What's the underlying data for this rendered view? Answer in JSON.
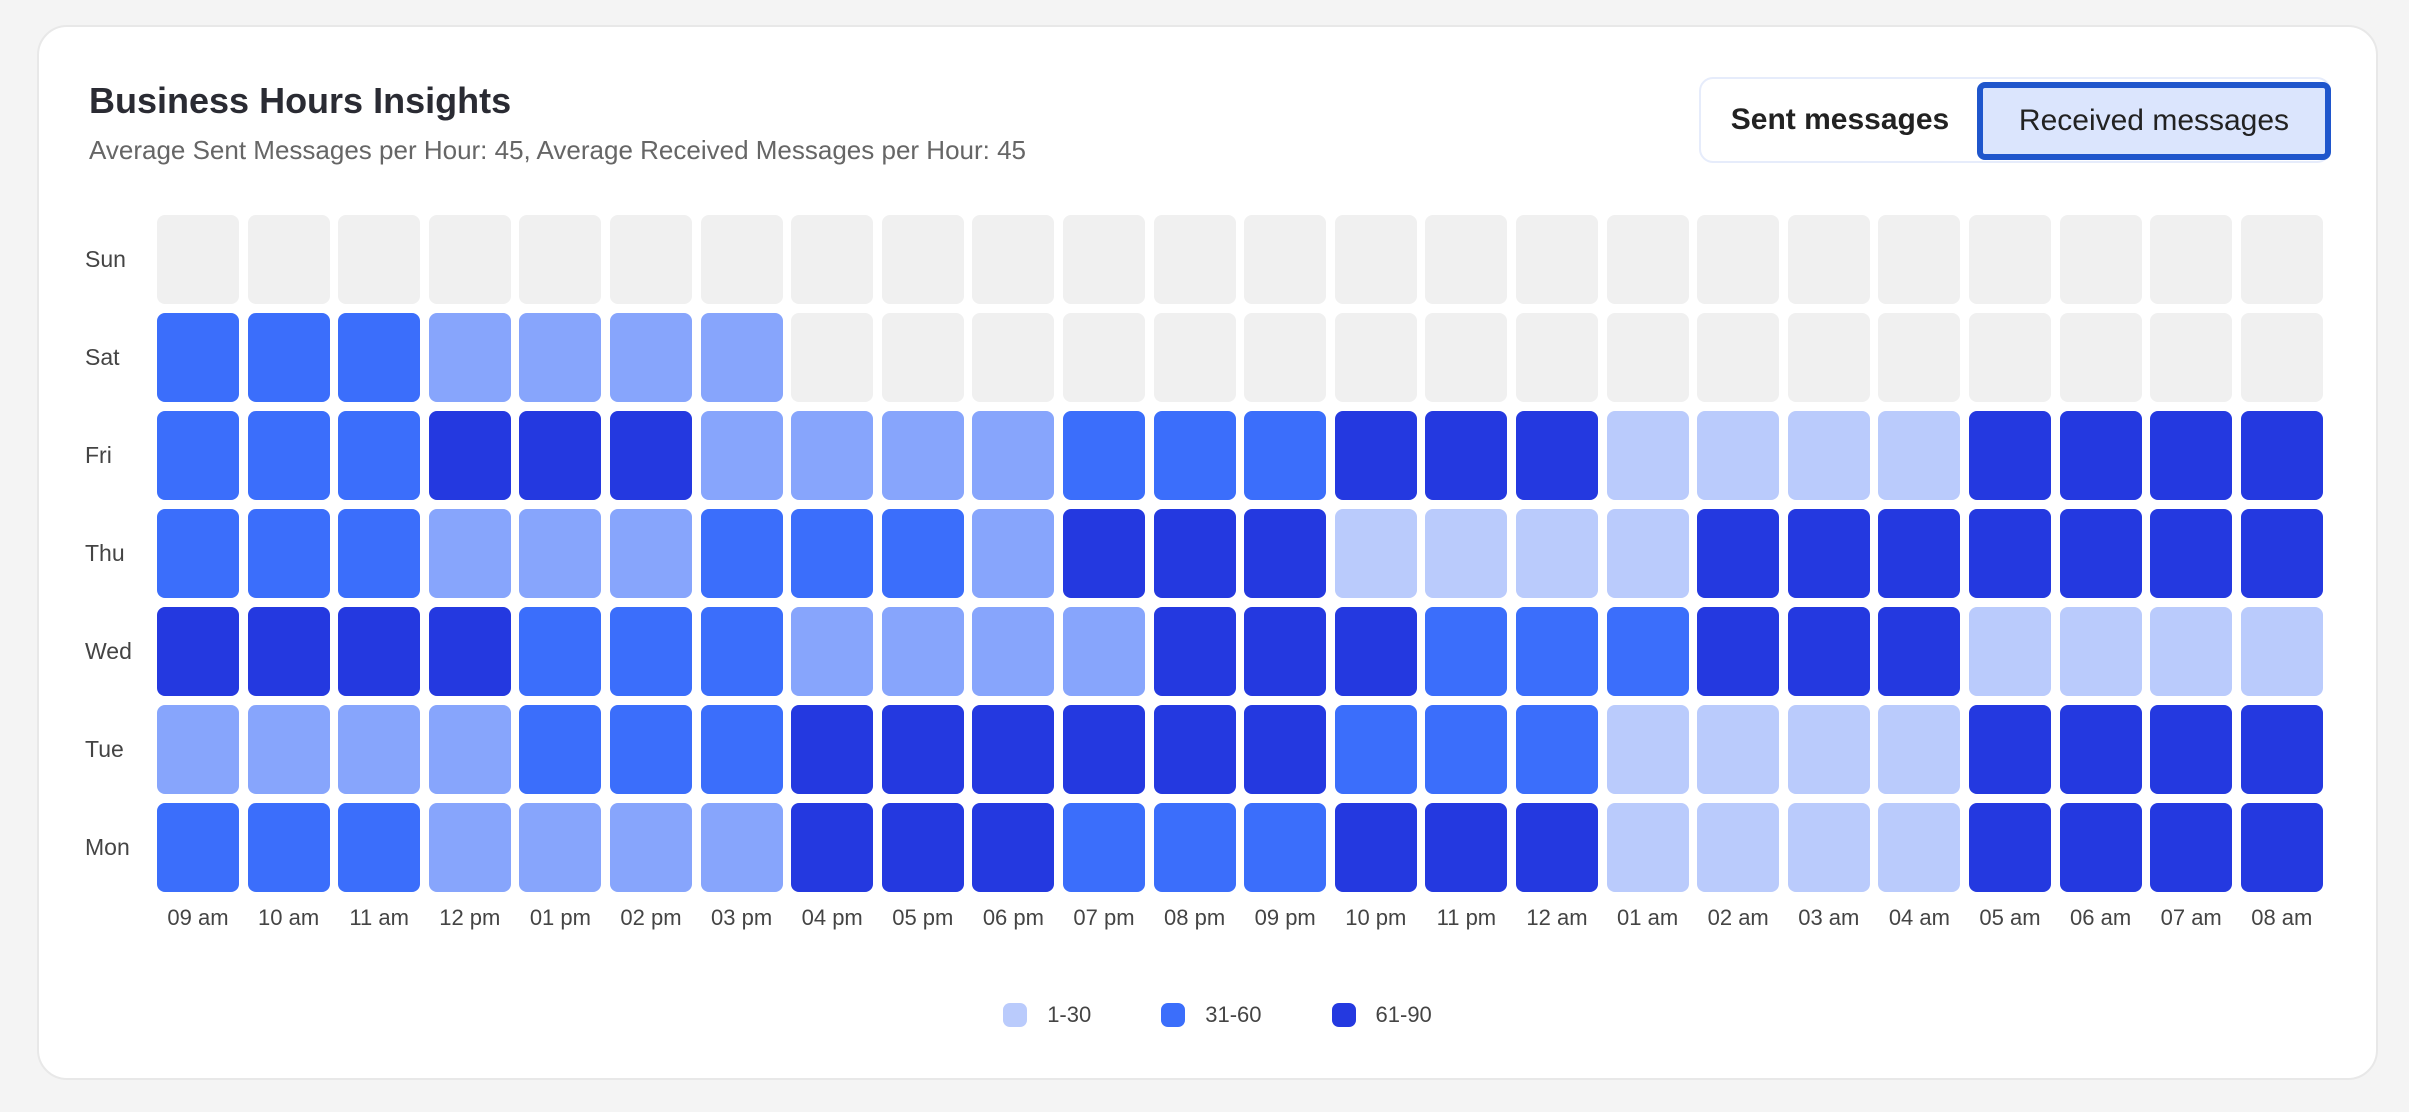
{
  "header": {
    "title": "Business Hours Insights",
    "subtitle": "Average Sent Messages per Hour: 45, Average Received Messages per Hour: 45"
  },
  "toggle": {
    "sent_label": "Sent messages",
    "received_label": "Received messages",
    "selected": "Received messages"
  },
  "chart_data": {
    "type": "heatmap",
    "rows": [
      "Sun",
      "Sat",
      "Fri",
      "Thu",
      "Wed",
      "Tue",
      "Mon"
    ],
    "columns": [
      "09 am",
      "10 am",
      "11 am",
      "12 pm",
      "01 pm",
      "02 pm",
      "03 pm",
      "04 pm",
      "05 pm",
      "06 pm",
      "07 pm",
      "08 pm",
      "09 pm",
      "10 pm",
      "11 pm",
      "12 am",
      "01 am",
      "02 am",
      "03 am",
      "04 am",
      "05 am",
      "06 am",
      "07 am",
      "08 am"
    ],
    "level_colors": [
      "#f0f0f0",
      "#bacbfc",
      "#87a5fc",
      "#3b6efb",
      "#2439e0"
    ],
    "levels": [
      [
        0,
        0,
        0,
        0,
        0,
        0,
        0,
        0,
        0,
        0,
        0,
        0,
        0,
        0,
        0,
        0,
        0,
        0,
        0,
        0,
        0,
        0,
        0,
        0
      ],
      [
        3,
        3,
        3,
        2,
        2,
        2,
        2,
        0,
        0,
        0,
        0,
        0,
        0,
        0,
        0,
        0,
        0,
        0,
        0,
        0,
        0,
        0,
        0,
        0
      ],
      [
        3,
        3,
        3,
        4,
        4,
        4,
        2,
        2,
        2,
        2,
        3,
        3,
        3,
        4,
        4,
        4,
        1,
        1,
        1,
        1,
        4,
        4,
        4,
        4
      ],
      [
        3,
        3,
        3,
        2,
        2,
        2,
        3,
        3,
        3,
        2,
        4,
        4,
        4,
        1,
        1,
        1,
        1,
        4,
        4,
        4,
        4,
        4,
        4,
        4
      ],
      [
        4,
        4,
        4,
        4,
        3,
        3,
        3,
        2,
        2,
        2,
        2,
        4,
        4,
        4,
        3,
        3,
        3,
        4,
        4,
        4,
        1,
        1,
        1,
        1
      ],
      [
        2,
        2,
        2,
        2,
        3,
        3,
        3,
        4,
        4,
        4,
        4,
        4,
        4,
        3,
        3,
        3,
        1,
        1,
        1,
        1,
        4,
        4,
        4,
        4
      ],
      [
        3,
        3,
        3,
        2,
        2,
        2,
        2,
        4,
        4,
        4,
        3,
        3,
        3,
        4,
        4,
        4,
        1,
        1,
        1,
        1,
        4,
        4,
        4,
        4
      ]
    ],
    "legend": [
      {
        "label": "1-30",
        "color": "#bacbfc"
      },
      {
        "label": "31-60",
        "color": "#3b6efb"
      },
      {
        "label": "61-90",
        "color": "#2439e0"
      }
    ]
  }
}
